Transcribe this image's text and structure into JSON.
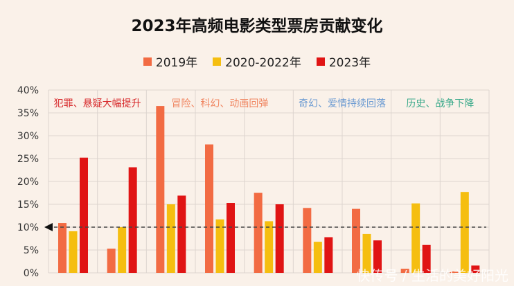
{
  "chart_data": {
    "type": "bar",
    "title": "2023年高频电影类型票房贡献变化",
    "xlabel": "",
    "ylabel": "",
    "ylim": [
      0,
      40
    ],
    "yticks": [
      "0%",
      "5%",
      "10%",
      "15%",
      "20%",
      "25%",
      "30%",
      "35%",
      "40%"
    ],
    "grid": true,
    "legend_position": "top",
    "categories": [
      "",
      "",
      "",
      "",
      "",
      "",
      "",
      "",
      ""
    ],
    "series": [
      {
        "name": "2019年",
        "color": "#f26b43",
        "values": [
          10.9,
          5.3,
          36.5,
          28.1,
          17.5,
          14.2,
          14.0,
          0.9,
          0.3
        ]
      },
      {
        "name": "2020-2022年",
        "color": "#f5be10",
        "values": [
          9.1,
          10.0,
          15.0,
          11.7,
          11.3,
          6.8,
          8.5,
          15.2,
          17.7
        ]
      },
      {
        "name": "2023年",
        "color": "#e01414",
        "values": [
          25.2,
          23.1,
          16.9,
          15.3,
          15.0,
          7.8,
          7.1,
          6.1,
          1.6
        ]
      }
    ],
    "reference_line": {
      "value": 10,
      "style": "dashed"
    },
    "annotations": [
      {
        "text": "犯罪、悬疑大幅提升",
        "color": "#d7282a",
        "groups": [
          0,
          1
        ]
      },
      {
        "text": "冒险、科幻、动画回弹",
        "color": "#f08560",
        "groups": [
          2,
          3,
          4
        ]
      },
      {
        "text": "奇幻、爱情持续回落",
        "color": "#6c9bd2",
        "groups": [
          5,
          6
        ]
      },
      {
        "text": "历史、战争下降",
        "color": "#3aa98a",
        "groups": [
          7,
          8
        ]
      }
    ]
  },
  "watermark": "快传号 / 生活的美好阳光"
}
